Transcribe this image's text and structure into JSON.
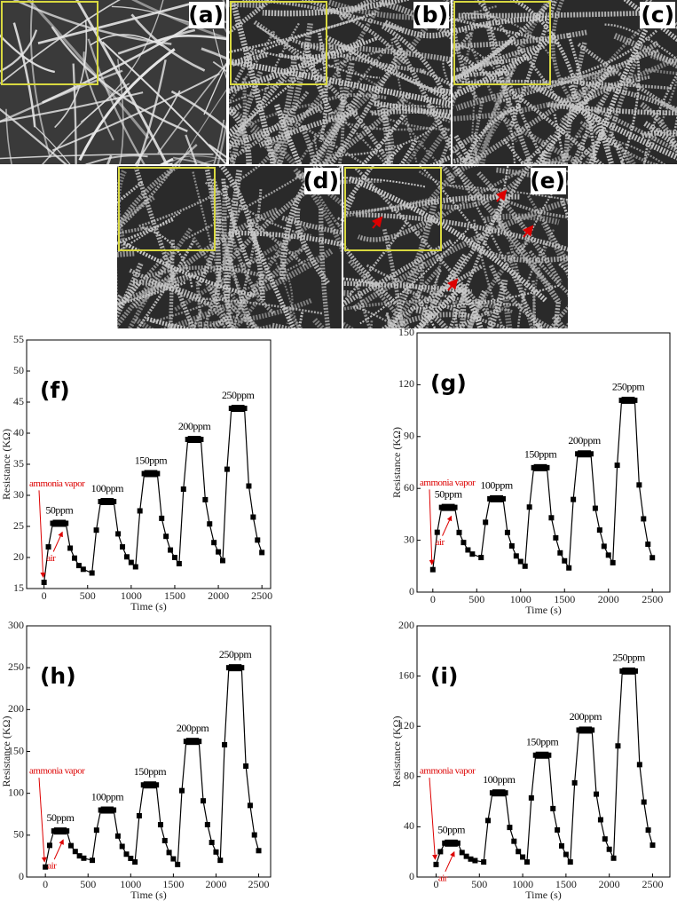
{
  "images": [
    {
      "label": "(a)"
    },
    {
      "label": "(b)"
    },
    {
      "label": "(c)"
    },
    {
      "label": "(d)"
    },
    {
      "label": "(e)"
    }
  ],
  "chart_data": [
    {
      "type": "line",
      "title": "(f)",
      "xlabel": "Time (s)",
      "ylabel": "Resistance (KΩ)",
      "color": "#000",
      "x": [
        0,
        50,
        100,
        150,
        200,
        250,
        300,
        350,
        400,
        450,
        550,
        600,
        650,
        700,
        750,
        800,
        850,
        900,
        950,
        1000,
        1050,
        1100,
        1150,
        1200,
        1250,
        1300,
        1350,
        1400,
        1450,
        1500,
        1550,
        1600,
        1650,
        1700,
        1750,
        1800,
        1850,
        1900,
        1950,
        2000,
        2050,
        2100,
        2150,
        2200,
        2250,
        2300,
        2350,
        2400,
        2450,
        2500
      ],
      "values": [
        16,
        21.7,
        25.5,
        25.5,
        25.5,
        25.5,
        21.5,
        19.9,
        18.7,
        18.1,
        17.5,
        24.4,
        29,
        29,
        29,
        29,
        23.8,
        21.7,
        20.1,
        19.2,
        18.5,
        27.5,
        33.5,
        33.5,
        33.5,
        33.5,
        26.3,
        23.4,
        21.2,
        20,
        19,
        31,
        39,
        39,
        39,
        39,
        29.3,
        25.4,
        22.4,
        20.9,
        19.5,
        34.2,
        44,
        44,
        44,
        44,
        31.5,
        26.5,
        22.8,
        20.8
      ],
      "xlim": [
        -200,
        2600
      ],
      "xticks": [
        0,
        500,
        1000,
        1500,
        2000,
        2500
      ],
      "ylim": [
        15,
        55
      ],
      "yticks": [
        15,
        20,
        25,
        30,
        35,
        40,
        45,
        50,
        55
      ],
      "peaks": [
        {
          "label": "50ppm",
          "value": 25.5,
          "x": [
            100,
            250
          ]
        },
        {
          "label": "100ppm",
          "value": 29,
          "x": [
            650,
            800
          ]
        },
        {
          "label": "150ppm",
          "value": 33.5,
          "x": [
            1150,
            1300
          ]
        },
        {
          "label": "200ppm",
          "value": 39,
          "x": [
            1650,
            1800
          ]
        },
        {
          "label": "250ppm",
          "value": 44,
          "x": [
            2150,
            2300
          ]
        }
      ],
      "annotations": [
        "ammonia vapor",
        "air"
      ]
    },
    {
      "type": "line",
      "title": "(g)",
      "xlabel": "Time (s)",
      "ylabel": "Resistance (KΩ)",
      "color": "#000",
      "x": [
        0,
        50,
        100,
        150,
        200,
        250,
        300,
        350,
        400,
        450,
        550,
        600,
        650,
        700,
        750,
        800,
        850,
        900,
        950,
        1000,
        1050,
        1100,
        1150,
        1200,
        1250,
        1300,
        1350,
        1400,
        1450,
        1500,
        1550,
        1600,
        1650,
        1700,
        1750,
        1800,
        1850,
        1900,
        1950,
        2000,
        2050,
        2100,
        2150,
        2200,
        2250,
        2300,
        2350,
        2400,
        2450,
        2500
      ],
      "values": [
        13,
        34.6,
        49,
        49,
        49,
        49,
        34.5,
        28.7,
        24.4,
        22,
        20,
        40.4,
        54,
        54,
        54,
        54,
        34.5,
        26.7,
        20.9,
        17.7,
        15,
        49.2,
        72,
        72,
        72,
        72,
        43,
        31.4,
        22.7,
        18.1,
        14,
        53.6,
        80,
        80,
        80,
        80,
        48.5,
        35.9,
        26.5,
        21.4,
        17,
        73.4,
        111,
        111,
        111,
        111,
        62,
        42.4,
        27.7,
        19.9
      ],
      "xlim": [
        -180,
        2700
      ],
      "xticks": [
        0,
        500,
        1000,
        1500,
        2000,
        2500
      ],
      "ylim": [
        0,
        150
      ],
      "yticks": [
        0,
        30,
        60,
        90,
        120,
        150
      ],
      "peaks": [
        {
          "label": "50ppm",
          "value": 49,
          "x": [
            100,
            250
          ]
        },
        {
          "label": "100ppm",
          "value": 54,
          "x": [
            650,
            800
          ]
        },
        {
          "label": "150ppm",
          "value": 72,
          "x": [
            1150,
            1300
          ]
        },
        {
          "label": "200ppm",
          "value": 80,
          "x": [
            1650,
            1800
          ]
        },
        {
          "label": "250ppm",
          "value": 111,
          "x": [
            2150,
            2300
          ]
        }
      ],
      "annotations": [
        "ammonia vapor",
        "air"
      ]
    },
    {
      "type": "line",
      "title": "(h)",
      "xlabel": "Time (s)",
      "ylabel": "Resistance (KΩ)",
      "color": "#000",
      "x": [
        0,
        50,
        100,
        150,
        200,
        250,
        300,
        350,
        400,
        450,
        550,
        600,
        650,
        700,
        750,
        800,
        850,
        900,
        950,
        1000,
        1050,
        1100,
        1150,
        1200,
        1250,
        1300,
        1350,
        1400,
        1450,
        1500,
        1550,
        1600,
        1650,
        1700,
        1750,
        1800,
        1850,
        1900,
        1950,
        2000,
        2050,
        2100,
        2150,
        2200,
        2250,
        2300,
        2350,
        2400,
        2450,
        2500
      ],
      "values": [
        12,
        37.8,
        55,
        55,
        55,
        55,
        37.5,
        30.5,
        25.3,
        22.5,
        20,
        56,
        80,
        80,
        80,
        80,
        49,
        36.6,
        27.3,
        22.3,
        18,
        73.2,
        110,
        110,
        110,
        110,
        62.5,
        43.5,
        29.3,
        21.7,
        15,
        103.2,
        162,
        162,
        162,
        162,
        91,
        62.6,
        41.3,
        29.9,
        20,
        158,
        250,
        250,
        250,
        250,
        132.5,
        85.5,
        50.3,
        31.5
      ],
      "xlim": [
        -220,
        2640
      ],
      "xticks": [
        0,
        500,
        1000,
        1500,
        2000,
        2500
      ],
      "ylim": [
        0,
        300
      ],
      "yticks": [
        0,
        50,
        100,
        150,
        200,
        250,
        300
      ],
      "peaks": [
        {
          "label": "50ppm",
          "value": 55,
          "x": [
            100,
            250
          ]
        },
        {
          "label": "100ppm",
          "value": 80,
          "x": [
            650,
            800
          ]
        },
        {
          "label": "150ppm",
          "value": 110,
          "x": [
            1150,
            1300
          ]
        },
        {
          "label": "200ppm",
          "value": 162,
          "x": [
            1650,
            1800
          ]
        },
        {
          "label": "250ppm",
          "value": 250,
          "x": [
            2150,
            2300
          ]
        }
      ],
      "annotations": [
        "ammonia vapor",
        "air"
      ]
    },
    {
      "type": "line",
      "title": "(i)",
      "xlabel": "Time (s)",
      "ylabel": "Resistance (KΩ)",
      "color": "#000",
      "x": [
        0,
        50,
        100,
        150,
        200,
        250,
        300,
        350,
        400,
        450,
        550,
        600,
        650,
        700,
        750,
        800,
        850,
        900,
        950,
        1000,
        1050,
        1100,
        1150,
        1200,
        1250,
        1300,
        1350,
        1400,
        1450,
        1500,
        1550,
        1600,
        1650,
        1700,
        1750,
        1800,
        1850,
        1900,
        1950,
        2000,
        2050,
        2100,
        2150,
        2200,
        2250,
        2300,
        2350,
        2400,
        2450,
        2500
      ],
      "values": [
        10,
        20.2,
        27,
        27,
        27,
        27,
        19.5,
        16.5,
        14.3,
        13.1,
        12,
        45,
        67,
        67,
        67,
        67,
        39.5,
        28.5,
        20.3,
        15.9,
        12,
        63,
        97,
        97,
        97,
        97,
        54.5,
        37.5,
        24.8,
        18,
        12,
        75,
        117,
        117,
        117,
        117,
        66,
        45.6,
        30.3,
        22.1,
        15,
        104.4,
        164,
        164,
        164,
        164,
        89.5,
        59.7,
        37.4,
        25.4
      ],
      "xlim": [
        -220,
        2700
      ],
      "xticks": [
        0,
        500,
        1000,
        1500,
        2000,
        2500
      ],
      "ylim": [
        0,
        200
      ],
      "yticks": [
        0,
        40,
        80,
        120,
        160,
        200
      ],
      "peaks": [
        {
          "label": "50ppm",
          "value": 27,
          "x": [
            100,
            250
          ]
        },
        {
          "label": "100ppm",
          "value": 67,
          "x": [
            650,
            800
          ]
        },
        {
          "label": "150ppm",
          "value": 97,
          "x": [
            1150,
            1300
          ]
        },
        {
          "label": "200ppm",
          "value": 117,
          "x": [
            1650,
            1800
          ]
        },
        {
          "label": "250ppm",
          "value": 164,
          "x": [
            2150,
            2300
          ]
        }
      ],
      "annotations": [
        "ammonia vapor",
        "air"
      ]
    }
  ]
}
